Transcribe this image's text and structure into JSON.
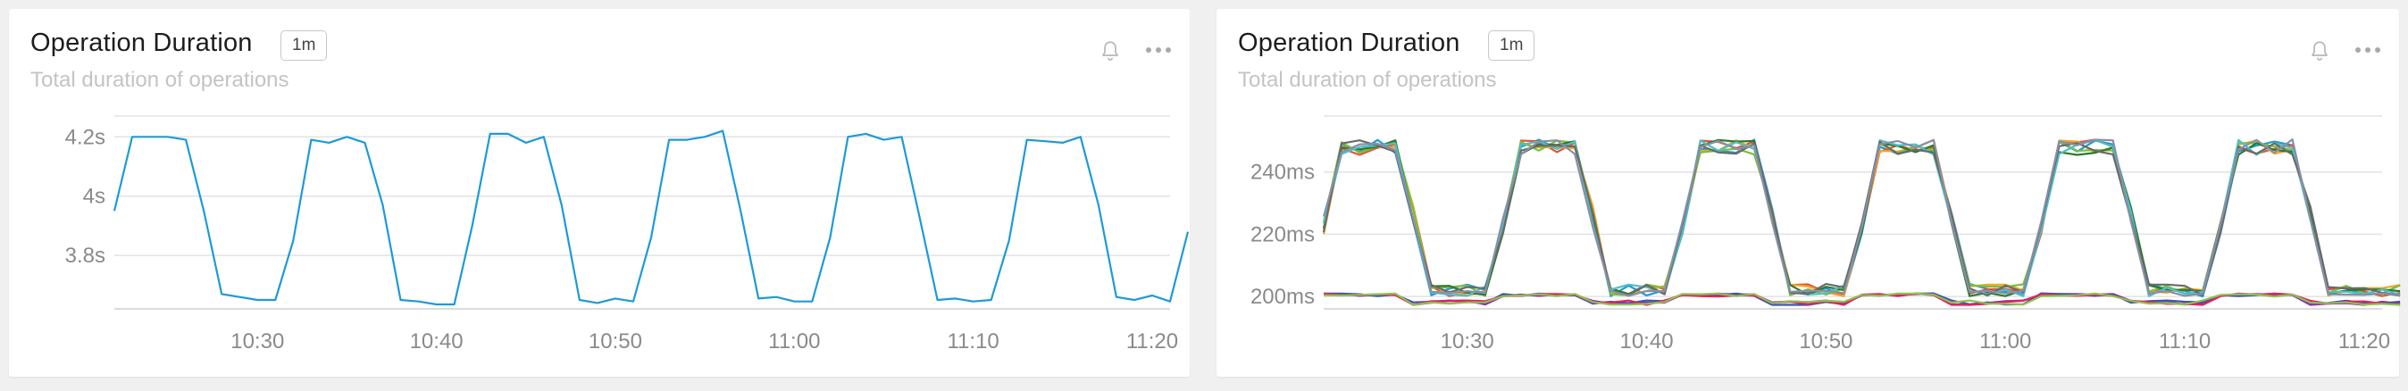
{
  "panels": [
    {
      "title": "Operation Duration",
      "badge": "1m",
      "subtitle": "Total duration of operations",
      "icons": [
        "bell-icon",
        "more-icon"
      ]
    },
    {
      "title": "Operation Duration",
      "badge": "1m",
      "subtitle": "Total duration of operations",
      "icons": [
        "bell-icon",
        "more-icon"
      ]
    }
  ],
  "colors": {
    "grid": "#e3e3e3",
    "axis": "#d0d0d0",
    "tick_text": "#8a8a8a",
    "series": [
      "#1e9ad6",
      "#e0563b",
      "#f5a623",
      "#9c27b0",
      "#7cbf3a",
      "#2c7a2c",
      "#3f51b5",
      "#888fa8",
      "#4dc0c8",
      "#e91e63",
      "#8bc34a",
      "#6a6a6a"
    ]
  },
  "chart_data": [
    {
      "type": "line",
      "title": "Operation Duration",
      "subtitle": "Total duration of operations",
      "xlabel": "",
      "ylabel": "",
      "unit": "s",
      "x_ticks": [
        "10:30",
        "10:40",
        "10:50",
        "11:00",
        "11:10",
        "11:20"
      ],
      "y_ticks": [
        {
          "value": 3.8,
          "label": "3.8s"
        },
        {
          "value": 4.0,
          "label": "4s"
        },
        {
          "value": 4.2,
          "label": "4.2s"
        }
      ],
      "xlim": [
        "10:22",
        "11:21"
      ],
      "ylim": [
        3.62,
        4.27
      ],
      "grid": true,
      "series": [
        {
          "color": "#1e9ad6",
          "points": [
            [
              "10:22",
              3.95
            ],
            [
              "10:23",
              4.2
            ],
            [
              "10:24",
              4.2
            ],
            [
              "10:25",
              4.2
            ],
            [
              "10:26",
              4.19
            ],
            [
              "10:27",
              3.95
            ],
            [
              "10:28",
              3.67
            ],
            [
              "10:29",
              3.66
            ],
            [
              "10:30",
              3.65
            ],
            [
              "10:31",
              3.65
            ],
            [
              "10:32",
              3.85
            ],
            [
              "10:33",
              4.19
            ],
            [
              "10:34",
              4.18
            ],
            [
              "10:35",
              4.2
            ],
            [
              "10:36",
              4.18
            ],
            [
              "10:37",
              3.97
            ],
            [
              "10:38",
              3.65
            ],
            [
              "10:39",
              3.645
            ],
            [
              "10:40",
              3.635
            ],
            [
              "10:41",
              3.635
            ],
            [
              "10:42",
              3.9
            ],
            [
              "10:43",
              4.21
            ],
            [
              "10:44",
              4.21
            ],
            [
              "10:45",
              4.18
            ],
            [
              "10:46",
              4.2
            ],
            [
              "10:47",
              3.97
            ],
            [
              "10:48",
              3.65
            ],
            [
              "10:49",
              3.64
            ],
            [
              "10:50",
              3.655
            ],
            [
              "10:51",
              3.645
            ],
            [
              "10:52",
              3.86
            ],
            [
              "10:53",
              4.19
            ],
            [
              "10:54",
              4.19
            ],
            [
              "10:55",
              4.2
            ],
            [
              "10:56",
              4.22
            ],
            [
              "10:57",
              3.95
            ],
            [
              "10:58",
              3.655
            ],
            [
              "10:59",
              3.66
            ],
            [
              "11:00",
              3.645
            ],
            [
              "11:01",
              3.645
            ],
            [
              "11:02",
              3.86
            ],
            [
              "11:03",
              4.2
            ],
            [
              "11:04",
              4.21
            ],
            [
              "11:05",
              4.19
            ],
            [
              "11:06",
              4.2
            ],
            [
              "11:07",
              3.93
            ],
            [
              "11:08",
              3.65
            ],
            [
              "11:09",
              3.655
            ],
            [
              "11:10",
              3.645
            ],
            [
              "11:11",
              3.65
            ],
            [
              "11:12",
              3.85
            ],
            [
              "11:13",
              4.19
            ],
            [
              "11:14",
              4.185
            ],
            [
              "11:15",
              4.18
            ],
            [
              "11:16",
              4.2
            ],
            [
              "11:17",
              3.97
            ],
            [
              "11:18",
              3.66
            ],
            [
              "11:19",
              3.65
            ],
            [
              "11:20",
              3.665
            ],
            [
              "11:21",
              3.645
            ],
            [
              "11:22",
              3.88
            ]
          ]
        }
      ]
    },
    {
      "type": "line",
      "title": "Operation Duration",
      "subtitle": "Total duration of operations",
      "xlabel": "",
      "ylabel": "",
      "unit": "ms",
      "x_ticks": [
        "10:30",
        "10:40",
        "10:50",
        "11:00",
        "11:10",
        "11:20"
      ],
      "y_ticks": [
        {
          "value": 200,
          "label": "200ms"
        },
        {
          "value": 220,
          "label": "220ms"
        },
        {
          "value": 240,
          "label": "240ms"
        }
      ],
      "xlim": [
        "10:22",
        "11:21"
      ],
      "ylim": [
        196,
        258
      ],
      "grid": true,
      "series": [
        {
          "color": "#1e9ad6",
          "profile": "high",
          "seed": 1
        },
        {
          "color": "#e0563b",
          "profile": "high",
          "seed": 2
        },
        {
          "color": "#f5a623",
          "profile": "high",
          "seed": 3
        },
        {
          "color": "#7cbf3a",
          "profile": "high",
          "seed": 4
        },
        {
          "color": "#2c7a2c",
          "profile": "high",
          "seed": 5
        },
        {
          "color": "#4dc0c8",
          "profile": "high",
          "seed": 6
        },
        {
          "color": "#6a6a6a",
          "profile": "high",
          "seed": 7
        },
        {
          "color": "#888fa8",
          "profile": "low",
          "seed": 8
        },
        {
          "color": "#9c27b0",
          "profile": "base",
          "seed": 9
        },
        {
          "color": "#3f51b5",
          "profile": "base",
          "seed": 10
        },
        {
          "color": "#e91e63",
          "profile": "base",
          "seed": 11
        },
        {
          "color": "#8bc34a",
          "profile": "base",
          "seed": 12
        }
      ]
    }
  ]
}
